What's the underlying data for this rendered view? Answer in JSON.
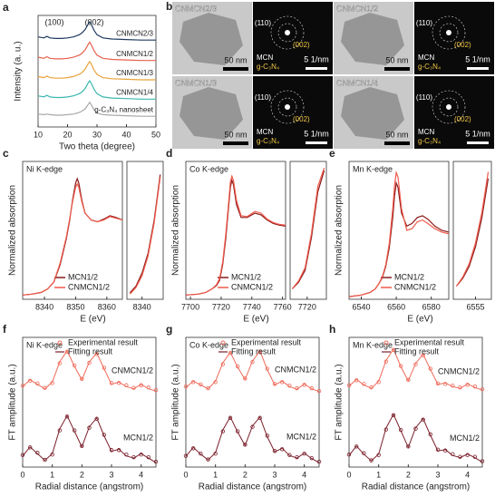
{
  "chart_data": [
    {
      "type": "line",
      "label": "a",
      "xlabel": "Two theta (degree)",
      "ylabel": "Intensity (a. u.)",
      "annotations": [
        "(100)",
        "(002)"
      ],
      "legend": "inline",
      "x": [
        10,
        12,
        13,
        14,
        16,
        18,
        20,
        22,
        24,
        25,
        26,
        27,
        27.5,
        28,
        29,
        30,
        32,
        35,
        40,
        45,
        50
      ],
      "xlim": [
        10,
        50
      ],
      "xticks": [
        10,
        20,
        30,
        40,
        50
      ],
      "ylim": [
        0,
        10.4
      ],
      "series": [
        {
          "name": "CNMCN2/3",
          "color": "#1f3a5f",
          "values": [
            8.4,
            8.3,
            8.45,
            8.3,
            8.25,
            8.25,
            8.3,
            8.4,
            8.6,
            8.8,
            9.1,
            9.6,
            9.8,
            9.6,
            9.0,
            8.6,
            8.3,
            8.2,
            8.15,
            8.1,
            8.1
          ]
        },
        {
          "name": "CNMCN1/2",
          "color": "#e8604c",
          "values": [
            6.5,
            6.4,
            6.55,
            6.4,
            6.35,
            6.35,
            6.4,
            6.5,
            6.7,
            6.9,
            7.2,
            7.7,
            7.9,
            7.7,
            7.1,
            6.7,
            6.4,
            6.3,
            6.25,
            6.2,
            6.2
          ]
        },
        {
          "name": "CNMCN1/3",
          "color": "#e8a33a",
          "values": [
            4.7,
            4.6,
            4.75,
            4.6,
            4.55,
            4.55,
            4.6,
            4.7,
            4.9,
            5.1,
            5.4,
            5.9,
            6.1,
            5.9,
            5.3,
            4.9,
            4.6,
            4.5,
            4.45,
            4.4,
            4.4
          ]
        },
        {
          "name": "CNMCN1/4",
          "color": "#3bb7b0",
          "values": [
            2.9,
            2.8,
            2.95,
            2.8,
            2.75,
            2.75,
            2.8,
            2.9,
            3.1,
            3.3,
            3.6,
            4.1,
            4.3,
            4.1,
            3.5,
            3.1,
            2.8,
            2.7,
            2.65,
            2.6,
            2.6
          ]
        },
        {
          "name": "g-C₃N₄ nanosheet",
          "color": "#a8a8a8",
          "values": [
            1.2,
            1.15,
            1.2,
            1.15,
            1.1,
            1.1,
            1.15,
            1.2,
            1.35,
            1.5,
            1.7,
            2.1,
            2.3,
            2.1,
            1.6,
            1.3,
            1.15,
            1.1,
            1.05,
            1.0,
            1.0
          ]
        }
      ]
    },
    {
      "type": "line",
      "label": "c",
      "title": "Ni K-edge",
      "xlabel": "E (eV)",
      "ylabel": "Normalized absorption",
      "legend": "lower right",
      "x": [
        8333,
        8336,
        8339,
        8341,
        8343,
        8345,
        8346,
        8347,
        8348,
        8349,
        8350,
        8350.5,
        8351,
        8352,
        8353,
        8355,
        8357,
        8359,
        8361,
        8363,
        8365
      ],
      "xlim": [
        8333,
        8365
      ],
      "xticks": [
        8340,
        8350,
        8360
      ],
      "ylim": [
        0,
        1.6
      ],
      "series": [
        {
          "name": "MCN1/2",
          "color": "#8b1a1a",
          "values": [
            0.05,
            0.06,
            0.08,
            0.12,
            0.2,
            0.4,
            0.55,
            0.7,
            0.9,
            1.15,
            1.35,
            1.4,
            1.35,
            1.15,
            1.0,
            0.92,
            0.9,
            0.93,
            0.97,
            0.95,
            0.92
          ]
        },
        {
          "name": "CNMCN1/2",
          "color": "#f05a4a",
          "values": [
            0.05,
            0.06,
            0.08,
            0.12,
            0.2,
            0.42,
            0.57,
            0.72,
            0.92,
            1.13,
            1.3,
            1.34,
            1.3,
            1.13,
            1.0,
            0.92,
            0.9,
            0.92,
            0.96,
            0.94,
            0.92
          ]
        }
      ]
    },
    {
      "type": "line",
      "x": [
        8336,
        8338,
        8340,
        8342,
        8344,
        8346
      ],
      "xlim": [
        8335,
        8347
      ],
      "xticks": [
        8340
      ],
      "ylim": [
        0,
        1.05
      ],
      "series": [
        {
          "color": "#8b1a1a",
          "values": [
            0.05,
            0.1,
            0.2,
            0.35,
            0.6,
            0.95
          ]
        },
        {
          "color": "#f05a4a",
          "values": [
            0.04,
            0.09,
            0.18,
            0.33,
            0.58,
            0.93
          ]
        }
      ]
    },
    {
      "type": "line",
      "label": "d",
      "title": "Co K-edge",
      "xlabel": "E (eV)",
      "ylabel": "Normalized absorption",
      "legend": "lower right",
      "x": [
        7697,
        7705,
        7710,
        7714,
        7717,
        7719,
        7721,
        7723,
        7725,
        7726,
        7727,
        7728,
        7730,
        7733,
        7737,
        7742,
        7746,
        7750,
        7754,
        7758,
        7762
      ],
      "xlim": [
        7697,
        7762
      ],
      "xticks": [
        7700,
        7720,
        7740,
        7760
      ],
      "ylim": [
        0,
        1.6
      ],
      "series": [
        {
          "name": "MCN1/2",
          "color": "#8b1a1a",
          "values": [
            0.05,
            0.06,
            0.08,
            0.12,
            0.16,
            0.22,
            0.4,
            0.7,
            1.1,
            1.3,
            1.38,
            1.33,
            1.1,
            0.95,
            0.95,
            1.0,
            0.98,
            0.92,
            0.88,
            0.86,
            0.85
          ]
        },
        {
          "name": "CNMCN1/2",
          "color": "#f05a4a",
          "values": [
            0.05,
            0.06,
            0.08,
            0.12,
            0.17,
            0.24,
            0.43,
            0.75,
            1.15,
            1.36,
            1.43,
            1.38,
            1.15,
            0.97,
            0.96,
            1.02,
            1.0,
            0.93,
            0.89,
            0.87,
            0.86
          ]
        }
      ]
    },
    {
      "type": "line",
      "x": [
        7713,
        7716,
        7719,
        7722,
        7725,
        7728
      ],
      "xlim": [
        7712,
        7729
      ],
      "xticks": [
        7720
      ],
      "ylim": [
        0,
        1.05
      ],
      "series": [
        {
          "color": "#8b1a1a",
          "values": [
            0.08,
            0.13,
            0.22,
            0.47,
            0.82,
            0.98
          ]
        },
        {
          "color": "#f05a4a",
          "values": [
            0.08,
            0.14,
            0.24,
            0.5,
            0.86,
            1.0
          ]
        }
      ]
    },
    {
      "type": "line",
      "label": "e",
      "title": "Mn K-edge",
      "xlabel": "E (eV)",
      "ylabel": "Normalized absorption",
      "legend": "lower right",
      "x": [
        6533,
        6540,
        6545,
        6548,
        6550,
        6552,
        6554,
        6556,
        6558,
        6559,
        6560,
        6561,
        6563,
        6566,
        6569,
        6572,
        6575,
        6578,
        6582,
        6586,
        6590
      ],
      "xlim": [
        6533,
        6590
      ],
      "xticks": [
        6540,
        6560,
        6580
      ],
      "ylim": [
        0,
        1.6
      ],
      "series": [
        {
          "name": "MCN1/2",
          "color": "#8b1a1a",
          "values": [
            0.03,
            0.05,
            0.08,
            0.12,
            0.18,
            0.25,
            0.38,
            0.6,
            0.95,
            1.2,
            1.35,
            1.3,
            1.0,
            0.85,
            0.88,
            0.95,
            0.97,
            0.93,
            0.85,
            0.8,
            0.78
          ]
        },
        {
          "name": "CNMCN1/2",
          "color": "#f05a4a",
          "values": [
            0.03,
            0.05,
            0.08,
            0.12,
            0.18,
            0.26,
            0.4,
            0.65,
            1.05,
            1.32,
            1.47,
            1.42,
            1.05,
            0.8,
            0.82,
            0.9,
            0.92,
            0.88,
            0.82,
            0.78,
            0.76
          ]
        }
      ]
    },
    {
      "type": "line",
      "x": [
        6549,
        6551,
        6553,
        6555,
        6557,
        6559
      ],
      "xlim": [
        6548,
        6560
      ],
      "xticks": [
        6555
      ],
      "ylim": [
        0,
        1.05
      ],
      "series": [
        {
          "color": "#8b1a1a",
          "values": [
            0.1,
            0.16,
            0.25,
            0.4,
            0.62,
            0.92
          ]
        },
        {
          "color": "#f05a4a",
          "values": [
            0.1,
            0.17,
            0.27,
            0.43,
            0.66,
            0.97
          ]
        }
      ]
    },
    {
      "type": "fit",
      "label": "f",
      "title": "Ni K-edge",
      "xlabel": "Radial distance (angstrom)",
      "ylabel": "FT amplitude (a.u.)",
      "legend": {
        "experimental": "Experimental result",
        "fitting": "Fitting result"
      },
      "x": [
        0,
        0.25,
        0.5,
        0.75,
        1,
        1.25,
        1.5,
        1.75,
        2,
        2.25,
        2.5,
        2.75,
        3,
        3.25,
        3.5,
        3.75,
        4,
        4.25,
        4.5
      ],
      "xlim": [
        0,
        4.5
      ],
      "xticks": [
        0,
        1,
        2,
        3,
        4
      ],
      "ylim": [
        0,
        2.9
      ],
      "samples": [
        {
          "name": "CNMCN1/2",
          "color": "#ef6a5a",
          "experimental": [
            1.82,
            1.93,
            1.87,
            1.77,
            1.88,
            2.32,
            2.58,
            2.27,
            1.97,
            2.33,
            2.53,
            2.22,
            1.88,
            1.88,
            1.83,
            1.77,
            1.83,
            1.78,
            1.72
          ],
          "fitting": [
            1.8,
            1.95,
            1.85,
            1.75,
            1.9,
            2.35,
            2.6,
            2.25,
            1.95,
            2.35,
            2.55,
            2.2,
            1.85,
            1.9,
            1.8,
            1.75,
            1.85,
            1.75,
            1.7
          ]
        },
        {
          "name": "MCN1/2",
          "color": "#7a1f2a",
          "experimental": [
            0.27,
            0.44,
            0.32,
            0.16,
            0.28,
            0.82,
            1.13,
            0.82,
            0.47,
            0.88,
            1.08,
            0.72,
            0.38,
            0.38,
            0.28,
            0.22,
            0.28,
            0.22,
            0.12
          ],
          "fitting": [
            0.25,
            0.45,
            0.3,
            0.15,
            0.3,
            0.85,
            1.15,
            0.8,
            0.45,
            0.9,
            1.1,
            0.7,
            0.35,
            0.4,
            0.25,
            0.2,
            0.3,
            0.2,
            0.1
          ]
        }
      ]
    },
    {
      "type": "fit",
      "label": "g",
      "title": "Co K-edge",
      "xlabel": "Radial distance (angstrom)",
      "ylabel": "FT amplitude (a.u.)",
      "legend": {
        "experimental": "Experimental result",
        "fitting": "Fitting result"
      },
      "x": [
        0,
        0.25,
        0.5,
        0.75,
        1,
        1.25,
        1.5,
        1.75,
        2,
        2.25,
        2.5,
        2.75,
        3,
        3.25,
        3.5,
        3.75,
        4,
        4.25,
        4.5
      ],
      "xlim": [
        0,
        4.5
      ],
      "xticks": [
        0,
        1,
        2,
        3,
        4
      ],
      "ylim": [
        0,
        2.9
      ],
      "samples": [
        {
          "name": "CNMCN1/2",
          "color": "#ef6a5a",
          "experimental": [
            1.8,
            1.9,
            1.85,
            1.76,
            1.9,
            2.3,
            2.55,
            2.25,
            1.98,
            2.35,
            2.58,
            2.2,
            1.86,
            1.9,
            1.82,
            1.76,
            1.84,
            1.76,
            1.7
          ],
          "fitting": [
            1.78,
            1.92,
            1.84,
            1.75,
            1.92,
            2.33,
            2.57,
            2.23,
            1.96,
            2.37,
            2.6,
            2.18,
            1.84,
            1.92,
            1.8,
            1.74,
            1.86,
            1.75,
            1.69
          ]
        },
        {
          "name": "MCN1/2",
          "color": "#7a1f2a",
          "experimental": [
            0.25,
            0.42,
            0.3,
            0.17,
            0.3,
            0.8,
            1.1,
            0.8,
            0.5,
            0.9,
            1.1,
            0.7,
            0.36,
            0.4,
            0.27,
            0.22,
            0.3,
            0.2,
            0.12
          ],
          "fitting": [
            0.24,
            0.44,
            0.29,
            0.16,
            0.32,
            0.83,
            1.12,
            0.78,
            0.48,
            0.92,
            1.12,
            0.68,
            0.34,
            0.42,
            0.26,
            0.2,
            0.31,
            0.19,
            0.1
          ]
        }
      ]
    },
    {
      "type": "fit",
      "label": "h",
      "title": "Mn K-edge",
      "xlabel": "Radial distance (angstrom)",
      "ylabel": "FT amplitude (a.u.)",
      "legend": {
        "experimental": "Experimental result",
        "fitting": "Fitting result"
      },
      "x": [
        0,
        0.25,
        0.5,
        0.75,
        1,
        1.25,
        1.5,
        1.75,
        2,
        2.25,
        2.5,
        2.75,
        3,
        3.25,
        3.5,
        3.75,
        4,
        4.25,
        4.5
      ],
      "xlim": [
        0,
        4.5
      ],
      "xticks": [
        0,
        1,
        2,
        3,
        4
      ],
      "ylim": [
        0,
        2.9
      ],
      "samples": [
        {
          "name": "CNMCN1/2",
          "color": "#ef6a5a",
          "experimental": [
            1.83,
            1.94,
            1.86,
            1.78,
            1.9,
            2.36,
            2.62,
            2.26,
            1.95,
            2.3,
            2.5,
            2.2,
            1.87,
            1.86,
            1.82,
            1.78,
            1.84,
            1.8,
            1.74
          ],
          "fitting": [
            1.81,
            1.96,
            1.84,
            1.76,
            1.92,
            2.38,
            2.64,
            2.24,
            1.93,
            2.32,
            2.52,
            2.18,
            1.85,
            1.88,
            1.8,
            1.76,
            1.86,
            1.78,
            1.72
          ]
        },
        {
          "name": "MCN1/2",
          "color": "#7a1f2a",
          "experimental": [
            0.28,
            0.46,
            0.31,
            0.15,
            0.27,
            0.84,
            1.16,
            0.83,
            0.46,
            0.86,
            1.06,
            0.73,
            0.39,
            0.37,
            0.29,
            0.23,
            0.27,
            0.23,
            0.13
          ],
          "fitting": [
            0.26,
            0.47,
            0.29,
            0.14,
            0.29,
            0.87,
            1.18,
            0.81,
            0.44,
            0.88,
            1.08,
            0.71,
            0.36,
            0.39,
            0.26,
            0.21,
            0.29,
            0.21,
            0.11
          ]
        }
      ]
    }
  ],
  "images": {
    "label": "b",
    "tiles": [
      {
        "sample": "CNMCN2/3",
        "scale": "50 nm",
        "rings": [
          "(110)",
          "(002)"
        ],
        "phases": [
          "MCN",
          "g-C₃N₄"
        ],
        "diffraction_scale": "5 1/nm"
      },
      {
        "sample": "CNMCN1/2",
        "scale": "50 nm",
        "rings": [
          "(110)",
          "(002)"
        ],
        "phases": [
          "MCN",
          "g-C₃N₄"
        ],
        "diffraction_scale": "5 1/nm"
      },
      {
        "sample": "CNMCN1/3",
        "scale": "50 nm",
        "rings": [
          "(110)",
          "(002)"
        ],
        "phases": [
          "MCN",
          "g-C₃N₄"
        ],
        "diffraction_scale": "5 1/nm"
      },
      {
        "sample": "CNMCN1/4",
        "scale": "50 nm",
        "rings": [
          "(110)",
          "(002)"
        ],
        "phases": [
          "MCN",
          "g-C₃N₄"
        ],
        "diffraction_scale": "5 1/nm"
      }
    ]
  }
}
